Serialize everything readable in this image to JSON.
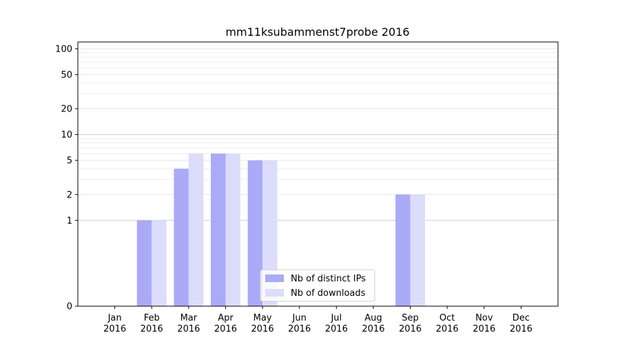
{
  "chart_data": {
    "type": "bar",
    "title": "mm11ksubammenst7probe 2016",
    "xlabel": "",
    "ylabel": "",
    "y_scale": "symlog",
    "ylim": [
      0,
      120
    ],
    "yticks": [
      0,
      1,
      2,
      5,
      10,
      20,
      50,
      100
    ],
    "grid": true,
    "legend_position": "lower center",
    "categories": [
      [
        "Jan",
        "2016"
      ],
      [
        "Feb",
        "2016"
      ],
      [
        "Mar",
        "2016"
      ],
      [
        "Apr",
        "2016"
      ],
      [
        "May",
        "2016"
      ],
      [
        "Jun",
        "2016"
      ],
      [
        "Jul",
        "2016"
      ],
      [
        "Aug",
        "2016"
      ],
      [
        "Sep",
        "2016"
      ],
      [
        "Oct",
        "2016"
      ],
      [
        "Nov",
        "2016"
      ],
      [
        "Dec",
        "2016"
      ]
    ],
    "series": [
      {
        "name": "Nb of distinct IPs",
        "color": "#aaaaf8",
        "values": [
          0,
          1,
          4,
          6,
          5,
          0,
          0,
          0,
          2,
          0,
          0,
          0
        ]
      },
      {
        "name": "Nb of downloads",
        "color": "#dcdcfb",
        "values": [
          0,
          1,
          6,
          6,
          5,
          0,
          0,
          0,
          2,
          0,
          0,
          0
        ]
      }
    ]
  }
}
